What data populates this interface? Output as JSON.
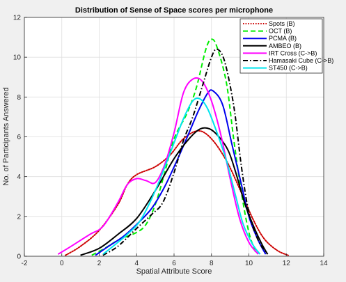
{
  "chart_data": {
    "type": "line",
    "title": "Distribution of Sense of Space scores per microphone",
    "xlabel": "Spatial Attribute Score",
    "ylabel": "No. of Participants Answered",
    "xlim": [
      -2,
      14
    ],
    "ylim": [
      0,
      12
    ],
    "xticks": [
      -2,
      0,
      2,
      4,
      6,
      8,
      10,
      12,
      14
    ],
    "yticks": [
      0,
      2,
      4,
      6,
      8,
      10,
      12
    ],
    "grid": true,
    "legend_position": "top-right",
    "series": [
      {
        "name": "Spots (B)",
        "color": "#cc0000",
        "style": "dotted",
        "points": [
          [
            0.2,
            0.05
          ],
          [
            1,
            0.5
          ],
          [
            2,
            1.3
          ],
          [
            3,
            2.6
          ],
          [
            3.5,
            3.6
          ],
          [
            4,
            4.1
          ],
          [
            5,
            4.5
          ],
          [
            5.8,
            5.1
          ],
          [
            6.5,
            5.9
          ],
          [
            7.3,
            6.3
          ],
          [
            8,
            5.9
          ],
          [
            8.8,
            4.8
          ],
          [
            9.5,
            3.4
          ],
          [
            10.2,
            1.9
          ],
          [
            10.8,
            0.9
          ],
          [
            11.5,
            0.3
          ],
          [
            12.1,
            0.05
          ]
        ]
      },
      {
        "name": "OCT (B)",
        "color": "#00ee00",
        "style": "dashed",
        "points": [
          [
            1.6,
            0.05
          ],
          [
            2.3,
            0.4
          ],
          [
            3,
            0.8
          ],
          [
            4,
            1.2
          ],
          [
            4.5,
            1.6
          ],
          [
            5,
            2.6
          ],
          [
            5.5,
            4.2
          ],
          [
            6,
            5.9
          ],
          [
            6.7,
            7.2
          ],
          [
            7.2,
            8.5
          ],
          [
            7.7,
            10.4
          ],
          [
            8,
            10.9
          ],
          [
            8.3,
            10.5
          ],
          [
            8.8,
            8.7
          ],
          [
            9.2,
            5.8
          ],
          [
            9.6,
            3.2
          ],
          [
            10,
            1.2
          ],
          [
            10.4,
            0.1
          ]
        ]
      },
      {
        "name": "PCMA (B)",
        "color": "#0000ee",
        "style": "solid",
        "points": [
          [
            1.8,
            0.05
          ],
          [
            2.5,
            0.5
          ],
          [
            3.3,
            1.0
          ],
          [
            4,
            1.6
          ],
          [
            4.8,
            2.4
          ],
          [
            5.5,
            3.5
          ],
          [
            6.2,
            4.9
          ],
          [
            6.8,
            6.2
          ],
          [
            7.3,
            7.3
          ],
          [
            7.8,
            8.2
          ],
          [
            8.1,
            8.3
          ],
          [
            8.6,
            7.6
          ],
          [
            9.1,
            5.6
          ],
          [
            9.6,
            3.6
          ],
          [
            10,
            2.0
          ],
          [
            10.5,
            0.8
          ],
          [
            10.9,
            0.1
          ]
        ]
      },
      {
        "name": "AMBEO (B)",
        "color": "#000000",
        "style": "solid",
        "points": [
          [
            1,
            0.05
          ],
          [
            2,
            0.4
          ],
          [
            3,
            1.1
          ],
          [
            4,
            1.9
          ],
          [
            5,
            3.3
          ],
          [
            6,
            4.9
          ],
          [
            6.8,
            5.9
          ],
          [
            7.4,
            6.4
          ],
          [
            7.9,
            6.4
          ],
          [
            8.4,
            6.0
          ],
          [
            8.9,
            5.3
          ],
          [
            9.3,
            4.2
          ],
          [
            9.8,
            2.6
          ],
          [
            10.3,
            1.4
          ],
          [
            10.7,
            0.6
          ],
          [
            11,
            0.1
          ]
        ]
      },
      {
        "name": "IRT Cross (C->B)",
        "color": "#ff00ff",
        "style": "solid",
        "points": [
          [
            -0.2,
            0.1
          ],
          [
            0.5,
            0.5
          ],
          [
            1.5,
            1.1
          ],
          [
            2.2,
            1.5
          ],
          [
            3,
            2.7
          ],
          [
            3.5,
            3.6
          ],
          [
            4,
            3.9
          ],
          [
            4.5,
            3.8
          ],
          [
            5,
            3.7
          ],
          [
            5.5,
            4.6
          ],
          [
            6,
            6.2
          ],
          [
            6.5,
            8.2
          ],
          [
            7,
            8.9
          ],
          [
            7.5,
            8.8
          ],
          [
            8,
            7.8
          ],
          [
            8.5,
            6.1
          ],
          [
            9,
            3.9
          ],
          [
            9.5,
            1.9
          ],
          [
            10,
            0.7
          ],
          [
            10.5,
            0.1
          ]
        ]
      },
      {
        "name": "Hamasaki Cube (C->B)",
        "color": "#000000",
        "style": "dashdot",
        "points": [
          [
            2.2,
            0.05
          ],
          [
            3,
            0.5
          ],
          [
            4,
            1.4
          ],
          [
            4.8,
            2.1
          ],
          [
            5.4,
            2.7
          ],
          [
            6,
            4.2
          ],
          [
            6.5,
            5.8
          ],
          [
            7,
            7.0
          ],
          [
            7.5,
            8.5
          ],
          [
            8,
            10.0
          ],
          [
            8.3,
            10.4
          ],
          [
            8.7,
            9.8
          ],
          [
            9.2,
            7.5
          ],
          [
            9.6,
            4.5
          ],
          [
            10,
            2.2
          ],
          [
            10.5,
            0.8
          ],
          [
            11,
            0.1
          ]
        ]
      },
      {
        "name": "ST450 (C->B)",
        "color": "#00e5ee",
        "style": "solid",
        "points": [
          [
            2.2,
            0.1
          ],
          [
            3,
            0.7
          ],
          [
            3.5,
            1.1
          ],
          [
            4.2,
            1.8
          ],
          [
            5,
            3.3
          ],
          [
            5.8,
            5.2
          ],
          [
            6.5,
            6.9
          ],
          [
            7,
            7.8
          ],
          [
            7.4,
            7.9
          ],
          [
            7.8,
            7.4
          ],
          [
            8.3,
            6.2
          ],
          [
            8.8,
            4.8
          ],
          [
            9.3,
            3.0
          ],
          [
            9.7,
            1.6
          ],
          [
            10.2,
            0.6
          ],
          [
            10.6,
            0.1
          ]
        ]
      }
    ]
  }
}
